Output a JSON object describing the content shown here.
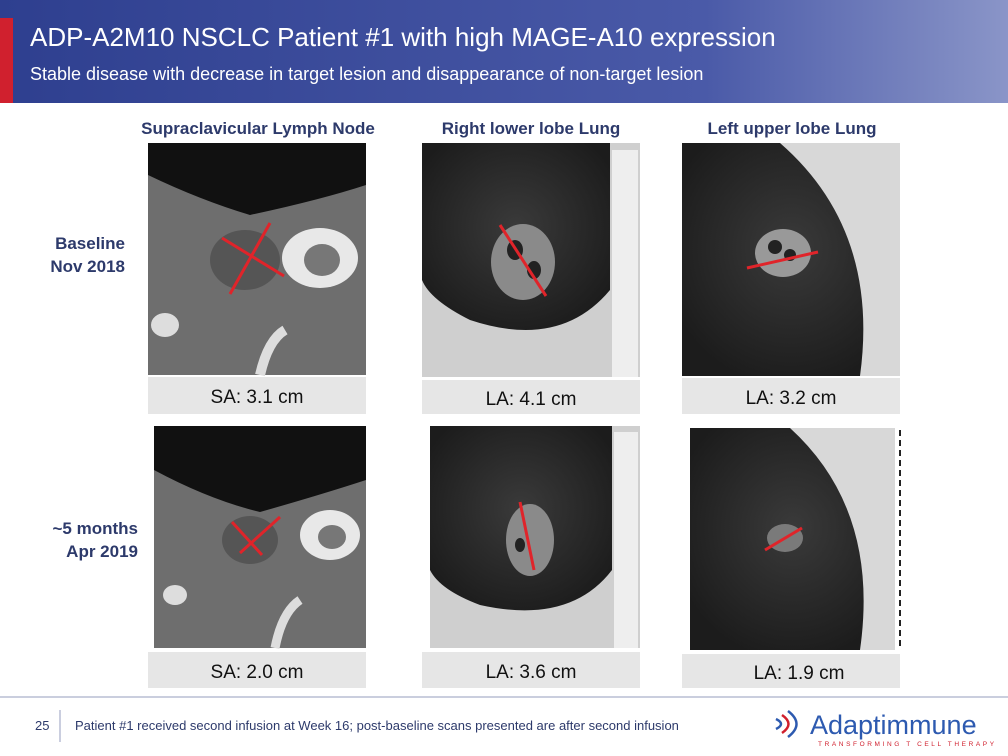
{
  "header": {
    "title": "ADP-A2M10 NSCLC Patient #1 with high MAGE-A10 expression",
    "subtitle": "Stable disease with decrease in target lesion and disappearance of non-target lesion"
  },
  "columns": [
    "Supraclavicular Lymph Node",
    "Right lower lobe Lung",
    "Left upper lobe Lung"
  ],
  "rows": [
    {
      "label": [
        "Baseline",
        "Nov 2018"
      ],
      "measurements": [
        "SA: 3.1 cm",
        "LA: 4.1 cm",
        "LA: 3.2 cm"
      ]
    },
    {
      "label": [
        "~5 months",
        "Apr 2019"
      ],
      "measurements": [
        "SA: 2.0 cm",
        "LA: 3.6 cm",
        "LA: 1.9 cm"
      ]
    }
  ],
  "footer": {
    "page": "25",
    "note": "Patient #1 received second infusion at Week 16; post-baseline scans presented are after second infusion"
  },
  "logo": {
    "name": "Adaptimmune",
    "tagline": "TRANSFORMING T CELL THERAPY"
  }
}
